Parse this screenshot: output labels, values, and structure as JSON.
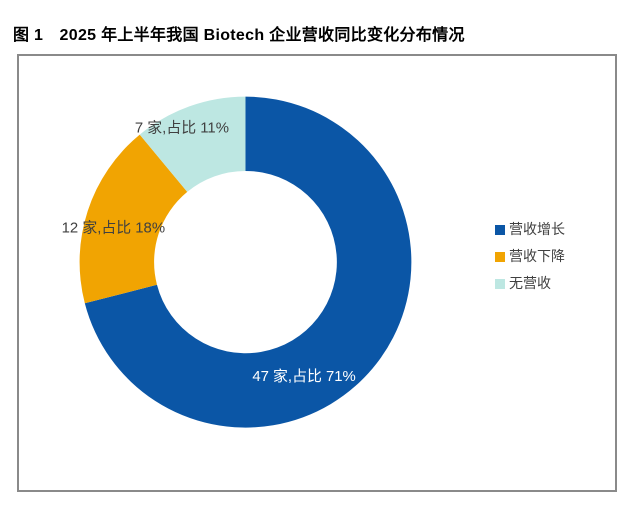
{
  "figure": {
    "title": "图 1　2025 年上半年我国 Biotech 企业营收同比变化分布情况"
  },
  "colors": {
    "growth_blue": "#0B56A6",
    "decline_orange": "#F1A402",
    "none_cyan": "#BDE7E2",
    "label_dark": "#404040",
    "label_light": "#FFFFFF",
    "box_border": "#8A8A8A"
  },
  "chart_data": {
    "type": "pie",
    "variant": "donut",
    "title": "2025 年上半年我国 Biotech 企业营收同比变化分布情况",
    "unit": "家 (companies)",
    "categories": [
      "营收增长",
      "营收下降",
      "无营收"
    ],
    "values_companies": [
      47,
      12,
      7
    ],
    "values_percent": [
      71,
      18,
      11
    ],
    "slices": [
      {
        "name": "营收增长",
        "count": 47,
        "percent": 71,
        "color": "#0B56A6",
        "label": "47 家,占比 71%",
        "label_color": "#FFFFFF"
      },
      {
        "name": "营收下降",
        "count": 12,
        "percent": 18,
        "color": "#F1A402",
        "label": "12 家,占比 18%",
        "label_color": "#404040"
      },
      {
        "name": "无营收",
        "count": 7,
        "percent": 11,
        "color": "#BDE7E2",
        "label": "7 家,占比 11%",
        "label_color": "#404040"
      }
    ],
    "start_angle_deg": 0,
    "direction": "clockwise",
    "inner_radius_ratio": 0.55,
    "legend_position": "right",
    "legend": [
      "营收增长",
      "营收下降",
      "无营收"
    ]
  }
}
